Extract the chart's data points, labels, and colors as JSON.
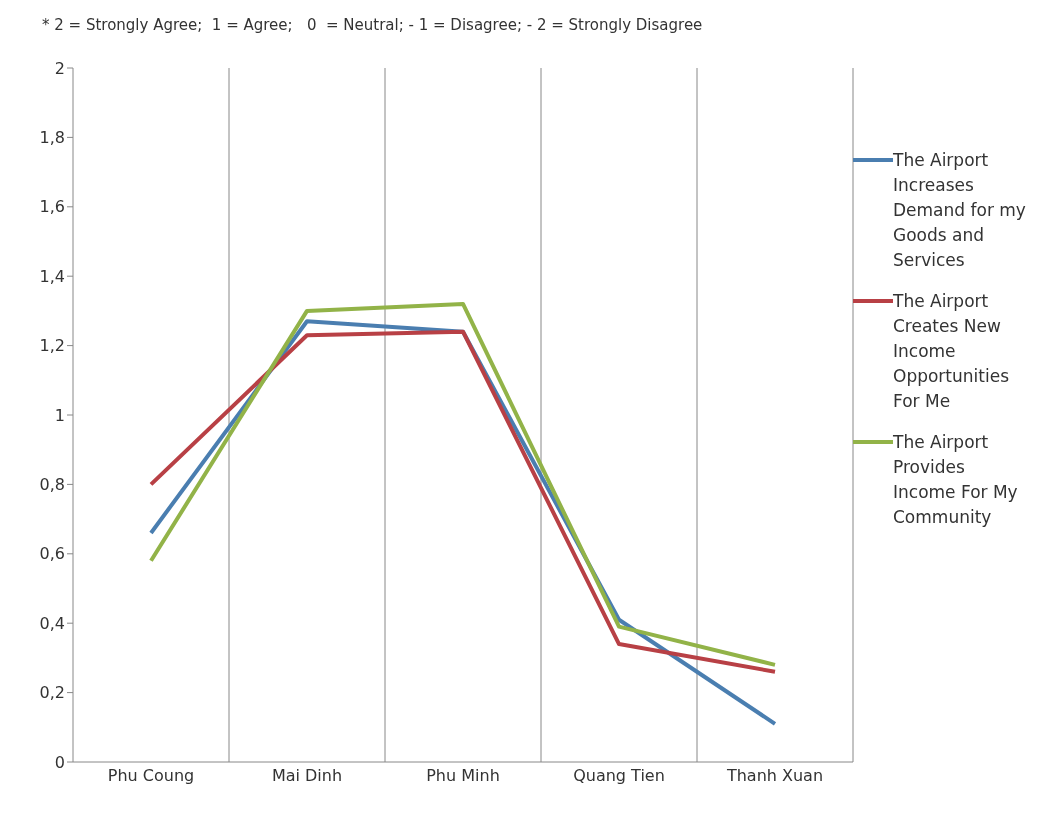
{
  "chart_data": {
    "type": "line",
    "title": "* 2 = Strongly Agree;  1 = Agree;   0  = Neutral; - 1 = Disagree; - 2 = Strongly Disagree",
    "categories": [
      "Phu Coung",
      "Mai Dinh",
      "Phu Minh",
      "Quang Tien",
      "Thanh Xuan"
    ],
    "series": [
      {
        "name": "The Airport Increases Demand for my Goods and Services",
        "color": "#4a7eb0",
        "values": [
          0.66,
          1.27,
          1.24,
          0.41,
          0.11
        ]
      },
      {
        "name": "The Airport Creates New Income Opportunities For Me",
        "color": "#b84045",
        "values": [
          0.8,
          1.23,
          1.24,
          0.34,
          0.26
        ]
      },
      {
        "name": "The Airport Provides Income For My Community",
        "color": "#92b348",
        "values": [
          0.58,
          1.3,
          1.32,
          0.39,
          0.28
        ]
      }
    ],
    "ylim": [
      0,
      2
    ],
    "yticks": [
      0,
      {
        "value": 0.2,
        "label": "0,2"
      },
      {
        "value": 0.4,
        "label": "0,4"
      },
      {
        "value": 0.6,
        "label": "0,6"
      },
      {
        "value": 0.8,
        "label": "0,8"
      },
      1,
      {
        "value": 1.2,
        "label": "1,2"
      },
      {
        "value": 1.4,
        "label": "1,4"
      },
      {
        "value": 1.6,
        "label": "1,6"
      },
      {
        "value": 1.8,
        "label": "1,8"
      },
      2
    ],
    "grid": "x",
    "legend": "right",
    "marker": "none",
    "line_style": "solid"
  }
}
